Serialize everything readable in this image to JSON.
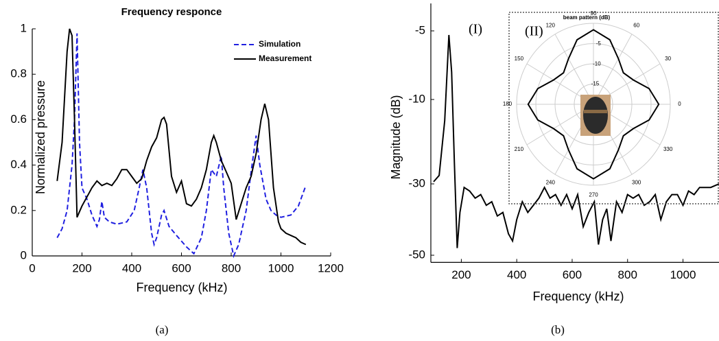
{
  "chart_data": [
    {
      "type": "line",
      "title": "Frequency responce",
      "xlabel": "Frequency (kHz)",
      "ylabel": "Normalized pressure",
      "caption": "(a)",
      "xlim": [
        0,
        1200
      ],
      "xticks": [
        0,
        200,
        400,
        600,
        800,
        1000,
        1200
      ],
      "ylim": [
        0,
        1
      ],
      "yticks": [
        0,
        0.2,
        0.4,
        0.6,
        0.8,
        1
      ],
      "grid": false,
      "legend": "upper right",
      "series": [
        {
          "name": "Simulation",
          "color": "#1f1fe0",
          "linestyle": "dashed",
          "x": [
            100,
            120,
            140,
            160,
            170,
            180,
            190,
            200,
            220,
            240,
            260,
            270,
            280,
            290,
            310,
            340,
            380,
            410,
            430,
            445,
            460,
            480,
            490,
            500,
            520,
            530,
            550,
            580,
            620,
            650,
            680,
            700,
            720,
            740,
            760,
            770,
            790,
            810,
            830,
            860,
            880,
            900,
            915,
            940,
            960,
            980,
            1000,
            1040,
            1070,
            1100
          ],
          "values": [
            0.08,
            0.12,
            0.2,
            0.4,
            0.6,
            0.98,
            0.5,
            0.3,
            0.25,
            0.18,
            0.13,
            0.16,
            0.24,
            0.17,
            0.15,
            0.14,
            0.15,
            0.2,
            0.3,
            0.38,
            0.3,
            0.1,
            0.05,
            0.08,
            0.18,
            0.2,
            0.13,
            0.09,
            0.04,
            0.01,
            0.08,
            0.2,
            0.38,
            0.35,
            0.44,
            0.3,
            0.1,
            0.0,
            0.05,
            0.2,
            0.37,
            0.53,
            0.4,
            0.25,
            0.2,
            0.18,
            0.17,
            0.18,
            0.22,
            0.31
          ]
        },
        {
          "name": "Measurement",
          "color": "#000000",
          "linestyle": "solid",
          "x": [
            100,
            120,
            140,
            150,
            160,
            170,
            180,
            200,
            220,
            240,
            260,
            280,
            300,
            320,
            340,
            360,
            380,
            400,
            420,
            440,
            460,
            480,
            500,
            520,
            530,
            540,
            560,
            580,
            600,
            620,
            640,
            660,
            680,
            700,
            720,
            730,
            740,
            760,
            780,
            800,
            820,
            840,
            860,
            880,
            900,
            920,
            935,
            950,
            970,
            990,
            1000,
            1020,
            1040,
            1060,
            1080,
            1100
          ],
          "values": [
            0.33,
            0.5,
            0.9,
            1.0,
            0.97,
            0.6,
            0.17,
            0.22,
            0.26,
            0.3,
            0.33,
            0.31,
            0.32,
            0.31,
            0.34,
            0.38,
            0.38,
            0.35,
            0.32,
            0.34,
            0.42,
            0.48,
            0.52,
            0.6,
            0.61,
            0.58,
            0.35,
            0.28,
            0.33,
            0.23,
            0.22,
            0.25,
            0.3,
            0.38,
            0.5,
            0.53,
            0.5,
            0.42,
            0.37,
            0.32,
            0.16,
            0.23,
            0.3,
            0.35,
            0.45,
            0.6,
            0.67,
            0.6,
            0.3,
            0.15,
            0.12,
            0.1,
            0.09,
            0.08,
            0.06,
            0.05
          ]
        }
      ]
    },
    {
      "type": "line",
      "xlabel": "Frequency (kHz)",
      "ylabel": "Magnitude (dB)",
      "caption": "(b)",
      "annotations": [
        "(I)",
        "(II)"
      ],
      "xlim": [
        90,
        1130
      ],
      "xticks": [
        200,
        400,
        600,
        800,
        1000
      ],
      "ylim": [
        -52,
        -3
      ],
      "yticks": [
        -5,
        -10,
        -30,
        -50
      ],
      "grid": false,
      "series": [
        {
          "color": "#000000",
          "linestyle": "solid",
          "x": [
            100,
            120,
            140,
            155,
            165,
            175,
            185,
            195,
            210,
            230,
            250,
            270,
            290,
            310,
            330,
            350,
            370,
            385,
            400,
            420,
            440,
            460,
            480,
            500,
            520,
            540,
            560,
            580,
            600,
            620,
            640,
            660,
            680,
            695,
            710,
            725,
            740,
            760,
            780,
            800,
            820,
            840,
            860,
            880,
            900,
            920,
            940,
            960,
            980,
            1000,
            1020,
            1040,
            1060,
            1080,
            1100,
            1130
          ],
          "values": [
            -29.5,
            -28,
            -15,
            -5.3,
            -8,
            -25,
            -48,
            -38,
            -31,
            -32,
            -34,
            -33,
            -36,
            -35,
            -39,
            -38,
            -44,
            -46,
            -40,
            -35,
            -38,
            -36,
            -34,
            -31,
            -34,
            -33,
            -36,
            -33,
            -37,
            -33,
            -42,
            -38,
            -35,
            -47,
            -40,
            -37,
            -46,
            -35,
            -38,
            -33,
            -34,
            -33,
            -36,
            -35,
            -33,
            -40,
            -35,
            -33,
            -33,
            -36,
            -32,
            -33,
            -31,
            -31,
            -31,
            -30
          ]
        }
      ]
    },
    {
      "type": "polar",
      "title": "beam pattern (dB)",
      "color": "#000000",
      "rlim": [
        -20,
        0
      ],
      "rticks": [
        -5,
        -10,
        -15
      ],
      "thetaticks": [
        0,
        30,
        60,
        90,
        120,
        150,
        180,
        210,
        240,
        270,
        300,
        330
      ],
      "theta": [
        0,
        15,
        30,
        45,
        60,
        75,
        90,
        105,
        120,
        135,
        150,
        165,
        180,
        195,
        210,
        225,
        240,
        255,
        270,
        285,
        300,
        315,
        330,
        345
      ],
      "values": [
        -3,
        -5,
        -8,
        -9,
        -7,
        -3.5,
        -1.6,
        -3.5,
        -7,
        -9,
        -8,
        -5,
        -3,
        -5,
        -8,
        -9,
        -7,
        -3.5,
        -1.6,
        -3.5,
        -7,
        -9,
        -8,
        -5
      ]
    }
  ]
}
